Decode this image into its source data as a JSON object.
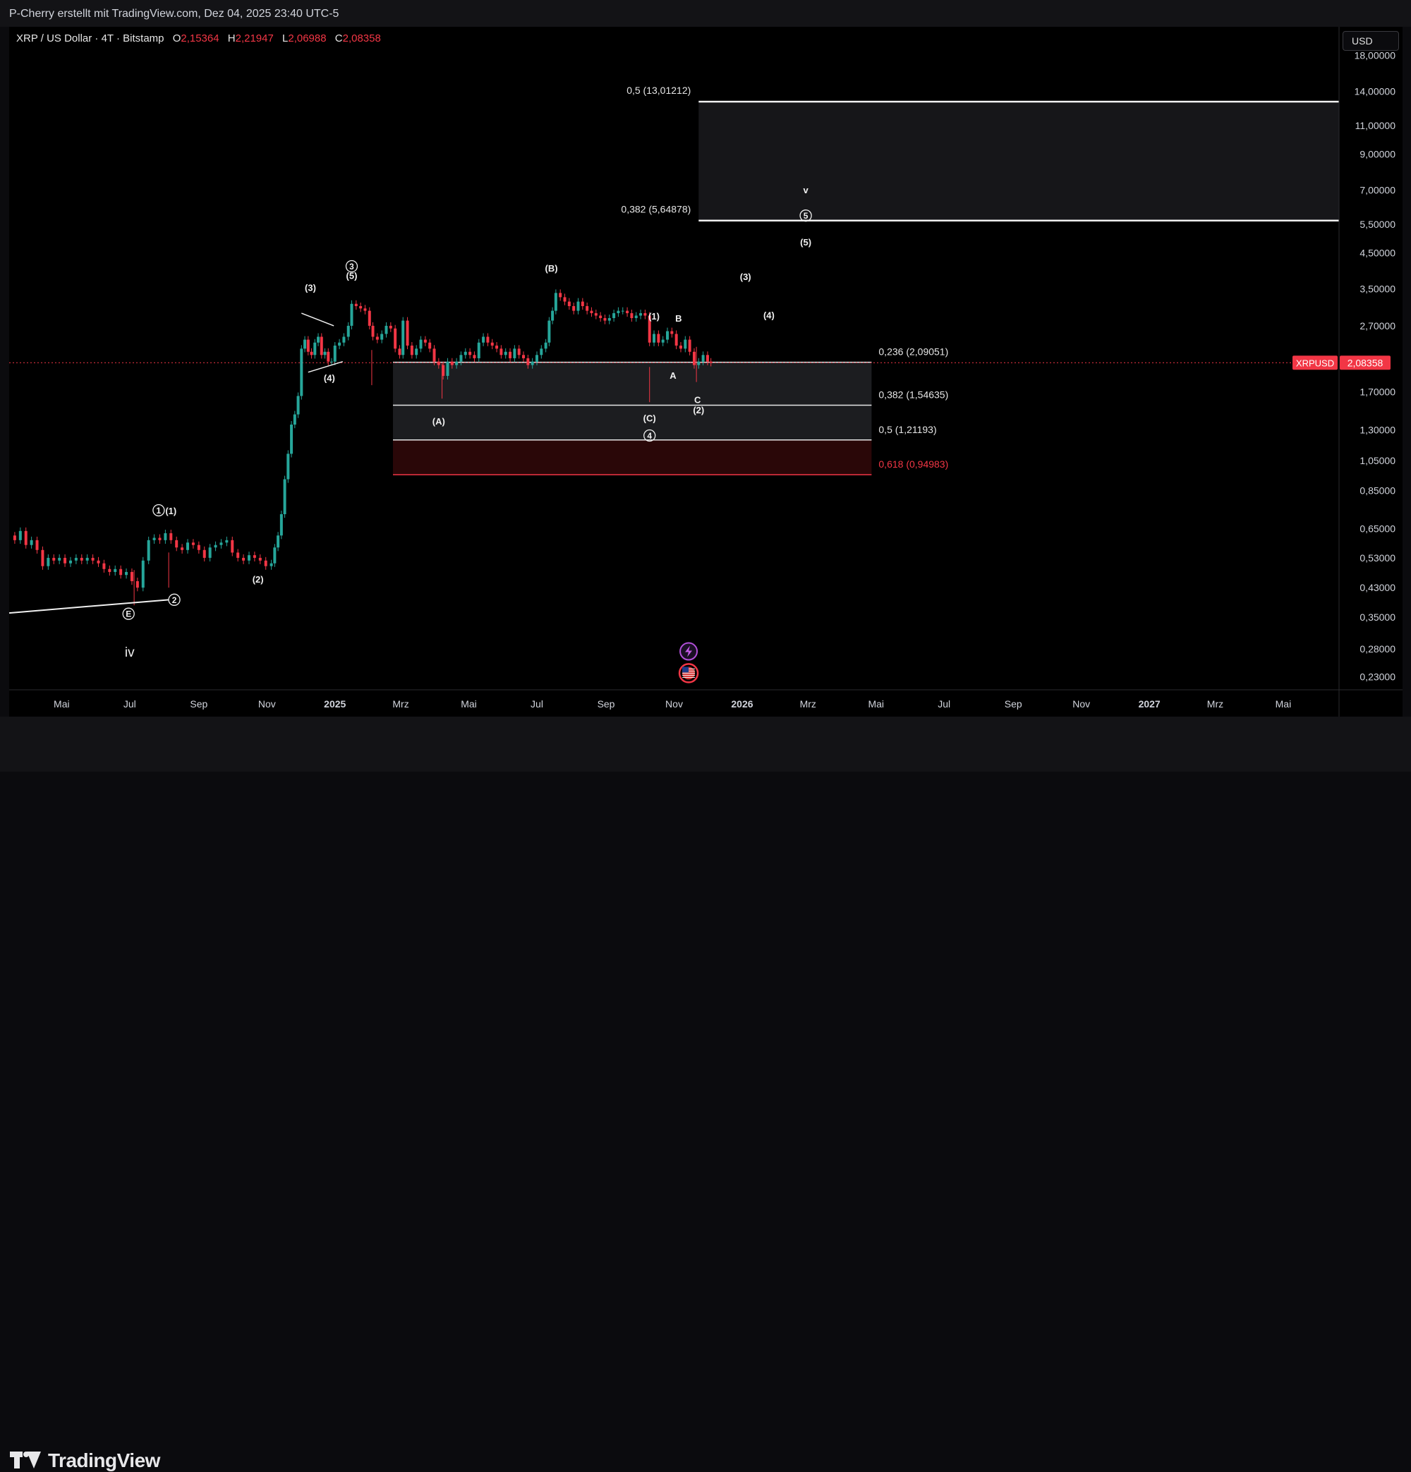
{
  "header": {
    "attribution": "P-Cherry erstellt mit TradingView.com, Dez 04, 2025 23:40 UTC-5"
  },
  "legend": {
    "symbol": "XRP / US Dollar · 4T · Bitstamp",
    "open_label": "O",
    "open": "2,15364",
    "high_label": "H",
    "high": "2,21947",
    "low_label": "L",
    "low": "2,06988",
    "close_label": "C",
    "close": "2,08358"
  },
  "currency_button": "USD",
  "price_badge": {
    "symbol": "XRPUSD",
    "price": "2,08358"
  },
  "brand": "TradingView",
  "colors": {
    "up": "#26a69a",
    "down": "#f23645",
    "background": "#000000",
    "zone": "#1c1d20",
    "red_zone": "#2a0708"
  },
  "chart_data": {
    "type": "candlestick",
    "scale": "log",
    "x_range": [
      "2024-03-15",
      "2027-06-20"
    ],
    "y_range": [
      0.21,
      22
    ],
    "y_ticks": [
      {
        "v": 18.0,
        "label": "18,00000"
      },
      {
        "v": 14.0,
        "label": "14,00000"
      },
      {
        "v": 11.0,
        "label": "11,00000"
      },
      {
        "v": 9.0,
        "label": "9,00000"
      },
      {
        "v": 7.0,
        "label": "7,00000"
      },
      {
        "v": 5.5,
        "label": "5,50000"
      },
      {
        "v": 4.5,
        "label": "4,50000"
      },
      {
        "v": 3.5,
        "label": "3,50000"
      },
      {
        "v": 2.7,
        "label": "2,70000"
      },
      {
        "v": 1.7,
        "label": "1,70000"
      },
      {
        "v": 1.3,
        "label": "1,30000"
      },
      {
        "v": 1.05,
        "label": "1,05000"
      },
      {
        "v": 0.85,
        "label": "0,85000"
      },
      {
        "v": 0.65,
        "label": "0,65000"
      },
      {
        "v": 0.53,
        "label": "0,53000"
      },
      {
        "v": 0.43,
        "label": "0,43000"
      },
      {
        "v": 0.35,
        "label": "0,35000"
      },
      {
        "v": 0.28,
        "label": "0,28000"
      },
      {
        "v": 0.23,
        "label": "0,23000"
      }
    ],
    "x_ticks": [
      {
        "d": "2024-05-01",
        "label": "Mai",
        "bold": false
      },
      {
        "d": "2024-07-01",
        "label": "Jul",
        "bold": false
      },
      {
        "d": "2024-09-01",
        "label": "Sep",
        "bold": false
      },
      {
        "d": "2024-11-01",
        "label": "Nov",
        "bold": false
      },
      {
        "d": "2025-01-01",
        "label": "2025",
        "bold": true
      },
      {
        "d": "2025-03-01",
        "label": "Mrz",
        "bold": false
      },
      {
        "d": "2025-05-01",
        "label": "Mai",
        "bold": false
      },
      {
        "d": "2025-07-01",
        "label": "Jul",
        "bold": false
      },
      {
        "d": "2025-09-01",
        "label": "Sep",
        "bold": false
      },
      {
        "d": "2025-11-01",
        "label": "Nov",
        "bold": false
      },
      {
        "d": "2026-01-01",
        "label": "2026",
        "bold": true
      },
      {
        "d": "2026-03-01",
        "label": "Mrz",
        "bold": false
      },
      {
        "d": "2026-05-01",
        "label": "Mai",
        "bold": false
      },
      {
        "d": "2026-07-01",
        "label": "Jul",
        "bold": false
      },
      {
        "d": "2026-09-01",
        "label": "Sep",
        "bold": false
      },
      {
        "d": "2026-11-01",
        "label": "Nov",
        "bold": false
      },
      {
        "d": "2027-01-01",
        "label": "2027",
        "bold": true
      },
      {
        "d": "2027-03-01",
        "label": "Mrz",
        "bold": false
      },
      {
        "d": "2027-05-01",
        "label": "Mai",
        "bold": false
      }
    ],
    "price_path": [
      [
        "2024-03-15",
        0.62
      ],
      [
        "2024-03-20",
        0.6
      ],
      [
        "2024-03-25",
        0.64
      ],
      [
        "2024-03-30",
        0.58
      ],
      [
        "2024-04-04",
        0.6
      ],
      [
        "2024-04-09",
        0.56
      ],
      [
        "2024-04-14",
        0.5
      ],
      [
        "2024-04-19",
        0.53
      ],
      [
        "2024-04-24",
        0.52
      ],
      [
        "2024-04-29",
        0.53
      ],
      [
        "2024-05-04",
        0.51
      ],
      [
        "2024-05-09",
        0.52
      ],
      [
        "2024-05-14",
        0.53
      ],
      [
        "2024-05-19",
        0.52
      ],
      [
        "2024-05-24",
        0.53
      ],
      [
        "2024-05-29",
        0.52
      ],
      [
        "2024-06-03",
        0.51
      ],
      [
        "2024-06-08",
        0.49
      ],
      [
        "2024-06-13",
        0.48
      ],
      [
        "2024-06-18",
        0.49
      ],
      [
        "2024-06-23",
        0.47
      ],
      [
        "2024-06-28",
        0.48
      ],
      [
        "2024-07-03",
        0.45
      ],
      [
        "2024-07-08",
        0.43
      ],
      [
        "2024-07-13",
        0.52
      ],
      [
        "2024-07-18",
        0.6
      ],
      [
        "2024-07-23",
        0.61
      ],
      [
        "2024-07-28",
        0.6
      ],
      [
        "2024-08-02",
        0.63
      ],
      [
        "2024-08-07",
        0.6
      ],
      [
        "2024-08-12",
        0.57
      ],
      [
        "2024-08-17",
        0.56
      ],
      [
        "2024-08-22",
        0.59
      ],
      [
        "2024-08-27",
        0.58
      ],
      [
        "2024-09-01",
        0.56
      ],
      [
        "2024-09-06",
        0.53
      ],
      [
        "2024-09-11",
        0.57
      ],
      [
        "2024-09-16",
        0.58
      ],
      [
        "2024-09-21",
        0.59
      ],
      [
        "2024-09-26",
        0.6
      ],
      [
        "2024-10-01",
        0.55
      ],
      [
        "2024-10-06",
        0.53
      ],
      [
        "2024-10-11",
        0.52
      ],
      [
        "2024-10-16",
        0.54
      ],
      [
        "2024-10-21",
        0.53
      ],
      [
        "2024-10-26",
        0.52
      ],
      [
        "2024-10-31",
        0.5
      ],
      [
        "2024-11-05",
        0.51
      ],
      [
        "2024-11-08",
        0.57
      ],
      [
        "2024-11-11",
        0.62
      ],
      [
        "2024-11-14",
        0.72
      ],
      [
        "2024-11-17",
        0.92
      ],
      [
        "2024-11-20",
        1.1
      ],
      [
        "2024-11-23",
        1.35
      ],
      [
        "2024-11-26",
        1.45
      ],
      [
        "2024-11-29",
        1.65
      ],
      [
        "2024-12-02",
        2.3
      ],
      [
        "2024-12-05",
        2.45
      ],
      [
        "2024-12-08",
        2.25
      ],
      [
        "2024-12-11",
        2.2
      ],
      [
        "2024-12-14",
        2.4
      ],
      [
        "2024-12-17",
        2.5
      ],
      [
        "2024-12-20",
        2.2
      ],
      [
        "2024-12-23",
        2.25
      ],
      [
        "2024-12-26",
        2.1
      ],
      [
        "2024-12-29",
        2.1
      ],
      [
        "2025-01-01",
        2.35
      ],
      [
        "2025-01-05",
        2.4
      ],
      [
        "2025-01-09",
        2.5
      ],
      [
        "2025-01-13",
        2.7
      ],
      [
        "2025-01-16",
        3.15
      ],
      [
        "2025-01-20",
        3.1
      ],
      [
        "2025-01-24",
        3.05
      ],
      [
        "2025-01-28",
        3.0
      ],
      [
        "2025-02-01",
        2.7
      ],
      [
        "2025-02-04",
        2.5
      ],
      [
        "2025-02-08",
        2.45
      ],
      [
        "2025-02-12",
        2.55
      ],
      [
        "2025-02-16",
        2.7
      ],
      [
        "2025-02-20",
        2.65
      ],
      [
        "2025-02-24",
        2.3
      ],
      [
        "2025-02-28",
        2.2
      ],
      [
        "2025-03-03",
        2.8
      ],
      [
        "2025-03-07",
        2.35
      ],
      [
        "2025-03-11",
        2.2
      ],
      [
        "2025-03-15",
        2.3
      ],
      [
        "2025-03-19",
        2.45
      ],
      [
        "2025-03-23",
        2.4
      ],
      [
        "2025-03-27",
        2.3
      ],
      [
        "2025-03-31",
        2.1
      ],
      [
        "2025-04-04",
        2.05
      ],
      [
        "2025-04-08",
        1.9
      ],
      [
        "2025-04-12",
        2.1
      ],
      [
        "2025-04-16",
        2.05
      ],
      [
        "2025-04-20",
        2.1
      ],
      [
        "2025-04-24",
        2.2
      ],
      [
        "2025-04-28",
        2.25
      ],
      [
        "2025-05-02",
        2.2
      ],
      [
        "2025-05-06",
        2.15
      ],
      [
        "2025-05-10",
        2.4
      ],
      [
        "2025-05-14",
        2.5
      ],
      [
        "2025-05-18",
        2.4
      ],
      [
        "2025-05-22",
        2.35
      ],
      [
        "2025-05-26",
        2.3
      ],
      [
        "2025-05-30",
        2.2
      ],
      [
        "2025-06-03",
        2.25
      ],
      [
        "2025-06-07",
        2.15
      ],
      [
        "2025-06-11",
        2.3
      ],
      [
        "2025-06-15",
        2.2
      ],
      [
        "2025-06-19",
        2.15
      ],
      [
        "2025-06-23",
        2.05
      ],
      [
        "2025-06-27",
        2.1
      ],
      [
        "2025-07-01",
        2.2
      ],
      [
        "2025-07-05",
        2.3
      ],
      [
        "2025-07-09",
        2.4
      ],
      [
        "2025-07-12",
        2.8
      ],
      [
        "2025-07-15",
        3.0
      ],
      [
        "2025-07-18",
        3.4
      ],
      [
        "2025-07-22",
        3.3
      ],
      [
        "2025-07-26",
        3.2
      ],
      [
        "2025-07-30",
        3.1
      ],
      [
        "2025-08-03",
        3.0
      ],
      [
        "2025-08-07",
        3.2
      ],
      [
        "2025-08-11",
        3.1
      ],
      [
        "2025-08-15",
        3.0
      ],
      [
        "2025-08-19",
        2.95
      ],
      [
        "2025-08-23",
        2.9
      ],
      [
        "2025-08-27",
        2.85
      ],
      [
        "2025-08-31",
        2.8
      ],
      [
        "2025-09-04",
        2.85
      ],
      [
        "2025-09-08",
        2.95
      ],
      [
        "2025-09-12",
        3.0
      ],
      [
        "2025-09-16",
        3.0
      ],
      [
        "2025-09-20",
        2.95
      ],
      [
        "2025-09-24",
        2.85
      ],
      [
        "2025-09-28",
        2.9
      ],
      [
        "2025-10-02",
        2.95
      ],
      [
        "2025-10-06",
        2.9
      ],
      [
        "2025-10-10",
        2.4
      ],
      [
        "2025-10-14",
        2.55
      ],
      [
        "2025-10-18",
        2.4
      ],
      [
        "2025-10-22",
        2.45
      ],
      [
        "2025-10-26",
        2.6
      ],
      [
        "2025-10-30",
        2.55
      ],
      [
        "2025-11-03",
        2.35
      ],
      [
        "2025-11-07",
        2.3
      ],
      [
        "2025-11-11",
        2.45
      ],
      [
        "2025-11-15",
        2.25
      ],
      [
        "2025-11-19",
        2.05
      ],
      [
        "2025-11-23",
        2.1
      ],
      [
        "2025-11-27",
        2.2
      ],
      [
        "2025-12-01",
        2.1
      ],
      [
        "2025-12-04",
        2.08358
      ]
    ],
    "spikes": [
      [
        "2025-02-03",
        1.78
      ],
      [
        "2025-10-10",
        1.58
      ],
      [
        "2025-04-07",
        1.62
      ],
      [
        "2024-07-05",
        0.38
      ],
      [
        "2024-08-05",
        0.43
      ],
      [
        "2025-11-21",
        1.82
      ]
    ],
    "fib_levels_upper": [
      {
        "label": "0,5 (13,01212)",
        "value": 13.01212
      },
      {
        "label": "0,382 (5,64878)",
        "value": 5.64878
      }
    ],
    "fib_levels_lower": [
      {
        "label": "0,236 (2,09051)",
        "value": 2.09051
      },
      {
        "label": "0,382 (1,54635)",
        "value": 1.54635
      },
      {
        "label": "0,5 (1,21193)",
        "value": 1.21193
      },
      {
        "label": "0,618 (0,94983)",
        "value": 0.94983,
        "color": "#f23645"
      }
    ],
    "fib_lower_start": "2025-02-22",
    "fib_lower_end": "2026-04-27",
    "fib_upper_start": "2025-11-23",
    "current_price": 2.08358,
    "annotations": [
      {
        "text": "(3)",
        "d": "2024-12-10",
        "v": 3.45
      },
      {
        "text": "(5)",
        "d": "2025-01-16",
        "v": 3.75
      },
      {
        "text": "(4)",
        "d": "2024-12-27",
        "v": 1.83
      },
      {
        "text": "(A)",
        "d": "2025-04-04",
        "v": 1.35
      },
      {
        "text": "(B)",
        "d": "2025-07-14",
        "v": 3.95
      },
      {
        "text": "(1)",
        "d": "2025-10-14",
        "v": 2.82
      },
      {
        "text": "B",
        "d": "2025-11-05",
        "v": 2.78
      },
      {
        "text": "A",
        "d": "2025-10-31",
        "v": 1.86
      },
      {
        "text": "C",
        "d": "2025-11-22",
        "v": 1.57
      },
      {
        "text": "(2)",
        "d": "2025-11-23",
        "v": 1.46
      },
      {
        "text": "(C)",
        "d": "2025-10-10",
        "v": 1.38
      },
      {
        "text": "(3)",
        "d": "2026-01-04",
        "v": 3.72
      },
      {
        "text": "(4)",
        "d": "2026-01-25",
        "v": 2.84
      },
      {
        "text": "(5)",
        "d": "2026-02-27",
        "v": 4.75
      },
      {
        "text": "v",
        "d": "2026-02-27",
        "v": 6.85
      },
      {
        "text": "(1)",
        "d": "2024-08-07",
        "v": 0.72
      },
      {
        "text": "(2)",
        "d": "2024-10-24",
        "v": 0.445
      },
      {
        "text": "iv",
        "d": "2024-07-01",
        "v": 0.265,
        "size": "large"
      }
    ],
    "circled_labels": [
      {
        "text": "1",
        "d": "2024-07-27",
        "v": 0.74
      },
      {
        "text": "2",
        "d": "2024-08-10",
        "v": 0.395
      },
      {
        "text": "E",
        "d": "2024-06-30",
        "v": 0.358
      },
      {
        "text": "3",
        "d": "2025-01-16",
        "v": 4.1
      },
      {
        "text": "4",
        "d": "2025-10-10",
        "v": 1.25
      },
      {
        "text": "5",
        "d": "2026-02-27",
        "v": 5.85
      }
    ],
    "trendline": [
      [
        "2024-03-15",
        0.36
      ],
      [
        "2024-08-05",
        0.395
      ]
    ],
    "triangle_lines": [
      [
        [
          "2024-12-02",
          2.95
        ],
        [
          "2024-12-31",
          2.7
        ]
      ],
      [
        [
          "2024-12-08",
          1.95
        ],
        [
          "2025-01-08",
          2.1
        ]
      ]
    ],
    "event_icons": [
      {
        "type": "lightning-icon",
        "d": "2025-11-14",
        "v": 0.275
      },
      {
        "type": "us-flag-icon",
        "d": "2025-11-14",
        "v": 0.236
      }
    ]
  }
}
